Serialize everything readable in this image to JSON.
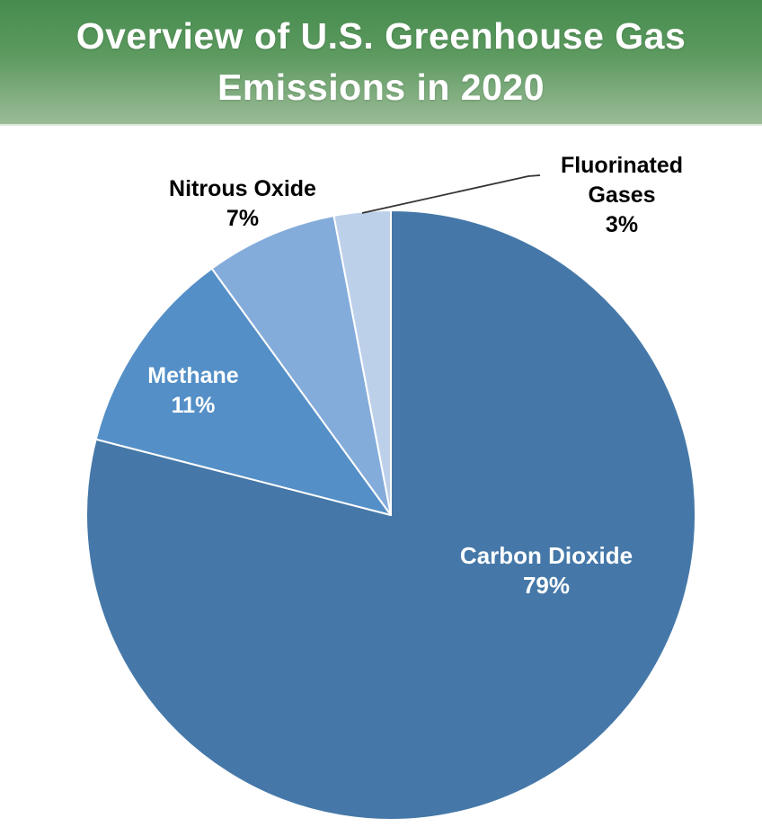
{
  "header": {
    "title_lines": [
      "Overview of U.S. Greenhouse Gas",
      "Emissions in 2020"
    ],
    "text_color": "#ffffff",
    "gradient_top": "#468c4e",
    "gradient_bottom": "#9bbb97"
  },
  "chart_data": {
    "type": "pie",
    "title": "Overview of U.S. Greenhouse Gas Emissions in 2020",
    "unit": "percent",
    "start_angle_deg": 0,
    "direction": "clockwise",
    "slice_border_color": "#ffffff",
    "leader_line_color": "#333333",
    "slices": [
      {
        "label": "Carbon Dioxide",
        "value": 79,
        "display": "79%",
        "color": "#4578a8",
        "label_color": "#ffffff",
        "label_position": "inside"
      },
      {
        "label": "Methane",
        "value": 11,
        "display": "11%",
        "color": "#548fc7",
        "label_color": "#ffffff",
        "label_position": "inside"
      },
      {
        "label": "Nitrous Oxide",
        "value": 7,
        "display": "7%",
        "color": "#84acdb",
        "label_color": "#000000",
        "label_position": "outside"
      },
      {
        "label": "Fluorinated Gases",
        "value": 3,
        "display": "3%",
        "color": "#bdd0ea",
        "label_color": "#000000",
        "label_position": "outside-with-leader"
      }
    ]
  }
}
